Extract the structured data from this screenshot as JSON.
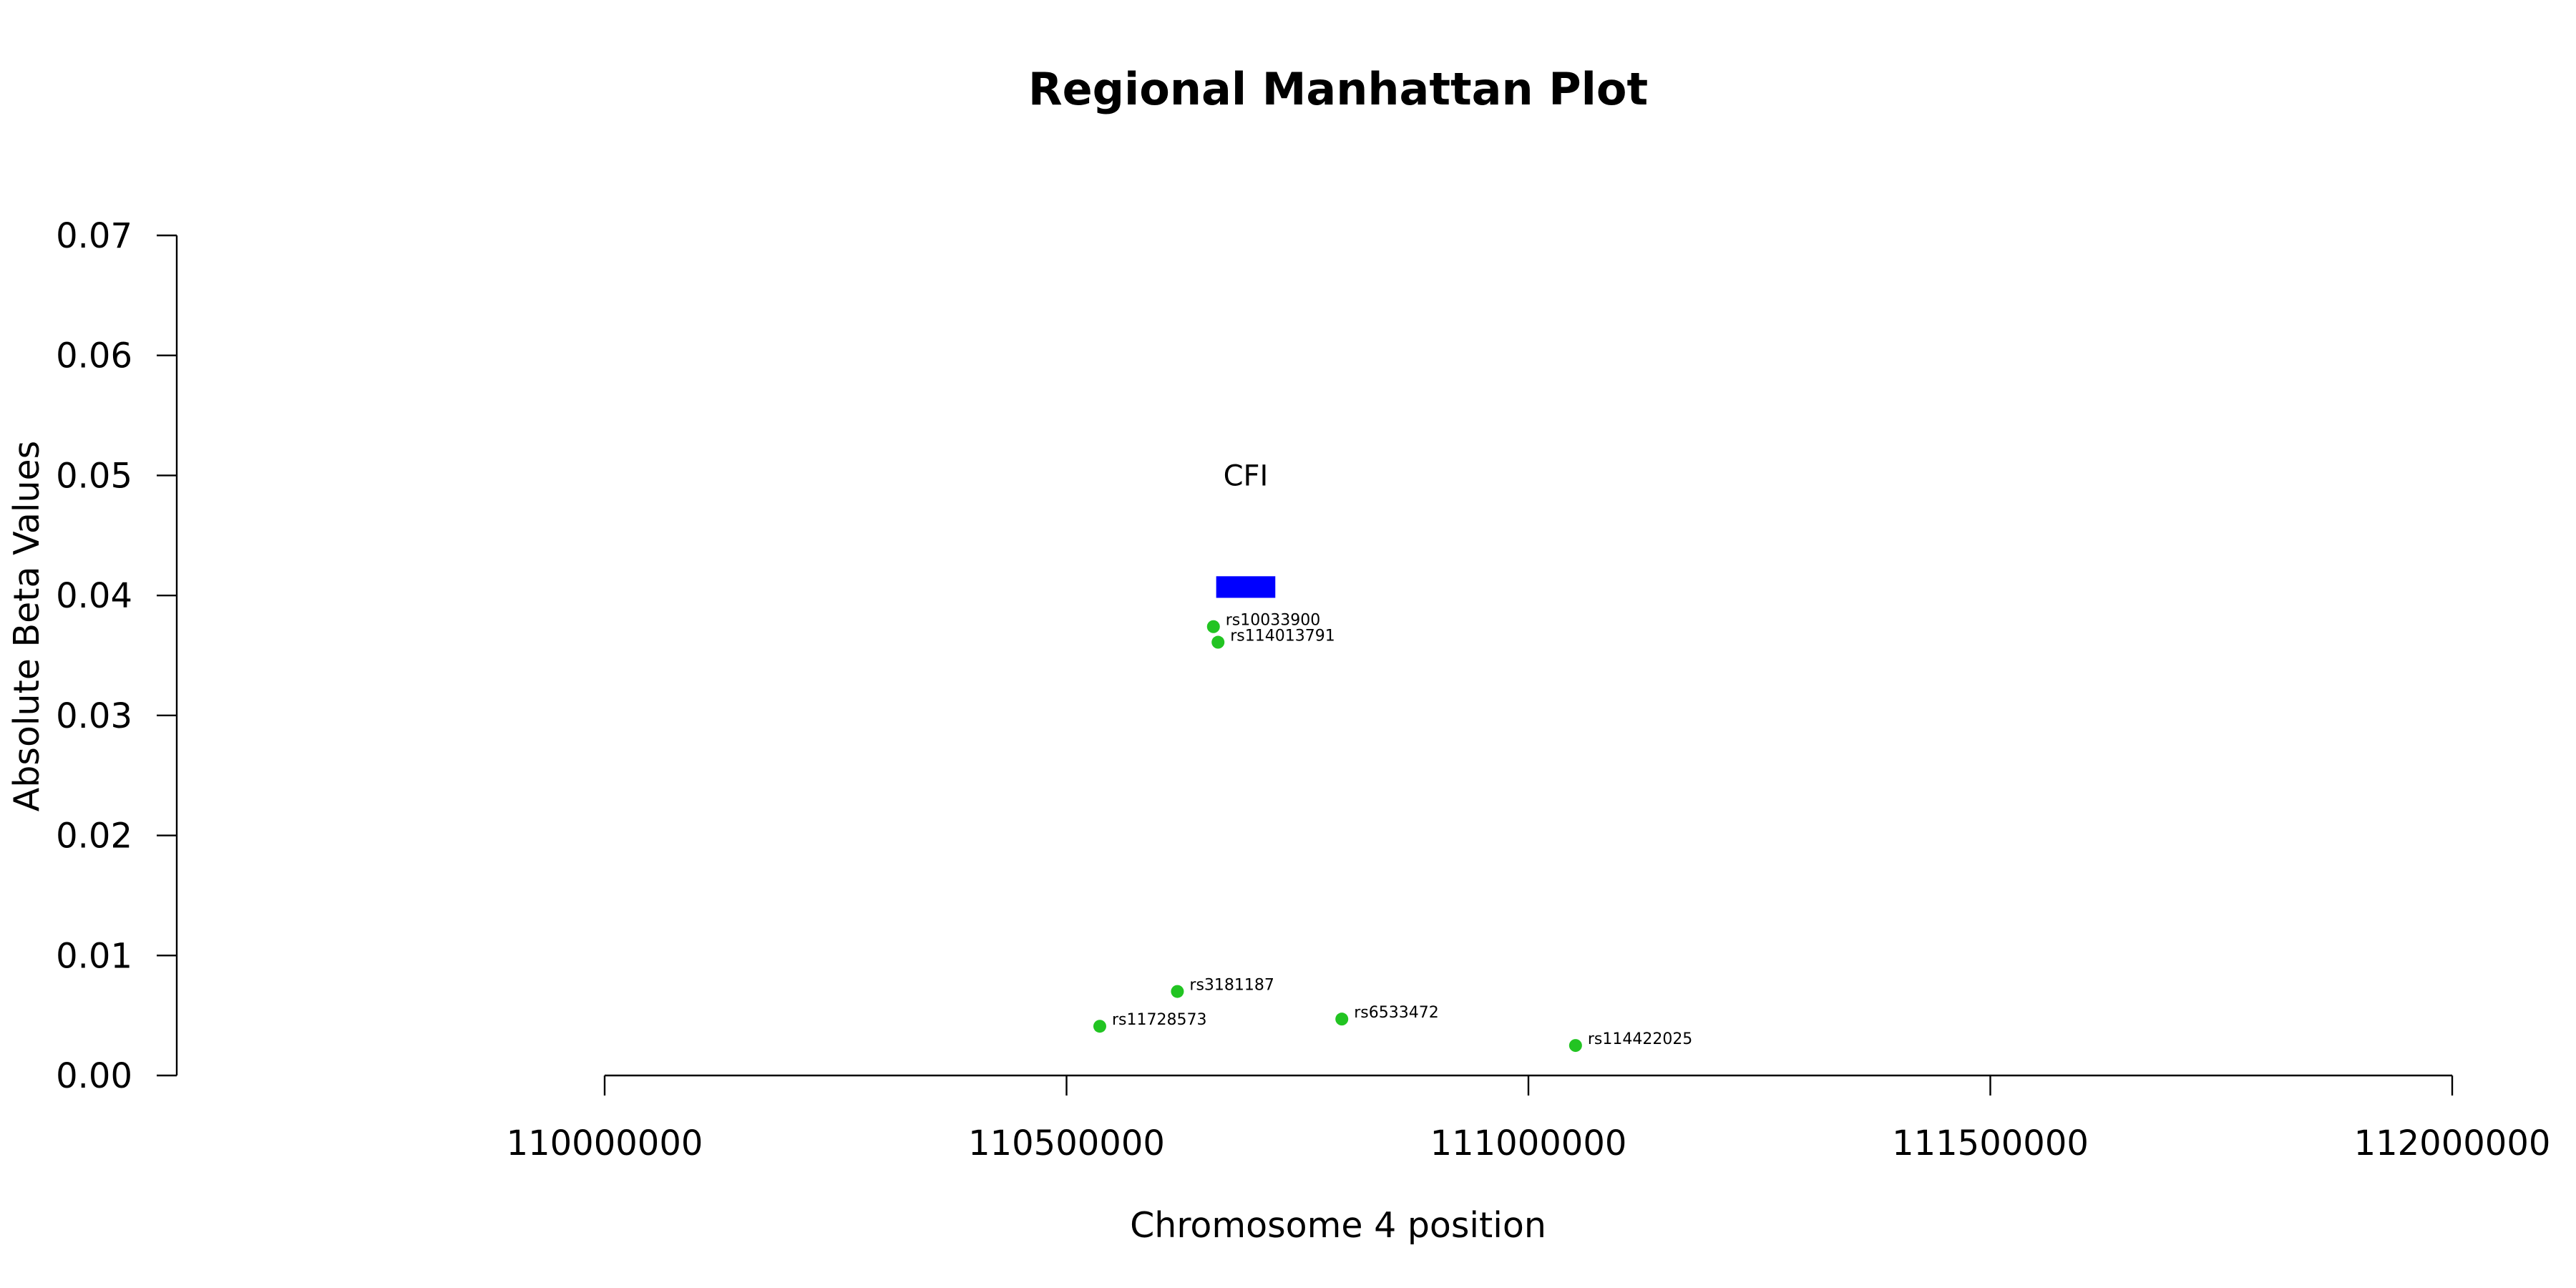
{
  "chart_data": {
    "type": "scatter",
    "title": "Regional Manhattan Plot",
    "xlabel": "Chromosome 4 position",
    "ylabel": "Absolute Beta Values",
    "xlim": [
      110000000,
      112000000
    ],
    "ylim": [
      0,
      0.07
    ],
    "x_ticks": [
      110000000,
      110500000,
      111000000,
      111500000,
      112000000
    ],
    "x_tick_labels": [
      "110000000",
      "110500000",
      "111000000",
      "111500000",
      "112000000"
    ],
    "y_ticks": [
      0,
      0.01,
      0.02,
      0.03,
      0.04,
      0.05,
      0.06,
      0.07
    ],
    "y_tick_labels": [
      "0.00",
      "0.01",
      "0.02",
      "0.03",
      "0.04",
      "0.05",
      "0.06",
      "0.07"
    ],
    "grid": false,
    "point_color": "#22c422",
    "points": [
      {
        "label": "rs10033900",
        "x": 110659000,
        "y": 0.0374
      },
      {
        "label": "rs114013791",
        "x": 110664000,
        "y": 0.0361
      },
      {
        "label": "rs3181187",
        "x": 110620000,
        "y": 0.007
      },
      {
        "label": "rs11728573",
        "x": 110536000,
        "y": 0.0041
      },
      {
        "label": "rs6533472",
        "x": 110798000,
        "y": 0.0047
      },
      {
        "label": "rs114422025",
        "x": 111051000,
        "y": 0.0025
      }
    ],
    "gene": {
      "name": "CFI",
      "start": 110662000,
      "end": 110726000,
      "y_bottom": 0.0398,
      "y_top": 0.0416,
      "color": "#0000ff"
    }
  }
}
